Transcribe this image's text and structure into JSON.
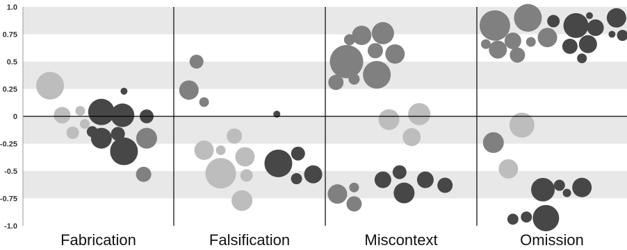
{
  "chart_data": {
    "type": "scatter",
    "subtype": "bubble",
    "title": "",
    "xlabel": "",
    "ylabel": "",
    "ylim": [
      -1.0,
      1.0
    ],
    "yticks": [
      1.0,
      0.75,
      0.5,
      0.25,
      0,
      -0.25,
      -0.5,
      -0.75,
      -1.0
    ],
    "ytick_labels": [
      "1.0",
      "0.75",
      "0.5",
      "0.25",
      "0",
      "-0.25",
      "-0.5",
      "-0.75",
      "-1.0"
    ],
    "grid": "alternating horizontal bands",
    "legend": "none",
    "colors": {
      "light": "#bdbdbd",
      "mid": "#808080",
      "dark": "#474747",
      "band": "#e8e8e8",
      "axis": "#000000"
    },
    "panels": [
      {
        "name": "Fabrication",
        "points": [
          {
            "x": 0.18,
            "y": 0.28,
            "r": 20,
            "shade": "light"
          },
          {
            "x": 0.26,
            "y": 0.01,
            "r": 12,
            "shade": "light"
          },
          {
            "x": 0.33,
            "y": -0.15,
            "r": 9,
            "shade": "light"
          },
          {
            "x": 0.38,
            "y": 0.05,
            "r": 7,
            "shade": "light"
          },
          {
            "x": 0.41,
            "y": -0.07,
            "r": 7,
            "shade": "light"
          },
          {
            "x": 0.46,
            "y": -0.14,
            "r": 8,
            "shade": "dark"
          },
          {
            "x": 0.52,
            "y": 0.04,
            "r": 19,
            "shade": "dark"
          },
          {
            "x": 0.52,
            "y": -0.2,
            "r": 15,
            "shade": "dark"
          },
          {
            "x": 0.63,
            "y": -0.16,
            "r": 10,
            "shade": "dark"
          },
          {
            "x": 0.67,
            "y": 0.23,
            "r": 5,
            "shade": "dark"
          },
          {
            "x": 0.66,
            "y": 0.01,
            "r": 17,
            "shade": "dark"
          },
          {
            "x": 0.67,
            "y": -0.32,
            "r": 20,
            "shade": "dark"
          },
          {
            "x": 0.82,
            "y": 0.0,
            "r": 10,
            "shade": "dark"
          },
          {
            "x": 0.82,
            "y": -0.2,
            "r": 15,
            "shade": "mid"
          },
          {
            "x": 0.8,
            "y": -0.53,
            "r": 11,
            "shade": "mid"
          }
        ]
      },
      {
        "name": "Falsification",
        "points": [
          {
            "x": 0.15,
            "y": 0.5,
            "r": 10,
            "shade": "mid"
          },
          {
            "x": 0.1,
            "y": 0.24,
            "r": 14,
            "shade": "mid"
          },
          {
            "x": 0.2,
            "y": 0.13,
            "r": 7,
            "shade": "mid"
          },
          {
            "x": 0.2,
            "y": -0.31,
            "r": 14,
            "shade": "light"
          },
          {
            "x": 0.31,
            "y": -0.31,
            "r": 7,
            "shade": "light"
          },
          {
            "x": 0.31,
            "y": -0.52,
            "r": 22,
            "shade": "light"
          },
          {
            "x": 0.4,
            "y": -0.18,
            "r": 11,
            "shade": "light"
          },
          {
            "x": 0.47,
            "y": -0.37,
            "r": 14,
            "shade": "light"
          },
          {
            "x": 0.48,
            "y": -0.54,
            "r": 9,
            "shade": "light"
          },
          {
            "x": 0.45,
            "y": -0.77,
            "r": 15,
            "shade": "light"
          },
          {
            "x": 0.68,
            "y": 0.02,
            "r": 5,
            "shade": "dark"
          },
          {
            "x": 0.69,
            "y": -0.43,
            "r": 20,
            "shade": "dark"
          },
          {
            "x": 0.82,
            "y": -0.34,
            "r": 10,
            "shade": "dark"
          },
          {
            "x": 0.81,
            "y": -0.57,
            "r": 8,
            "shade": "dark"
          },
          {
            "x": 0.92,
            "y": -0.53,
            "r": 13,
            "shade": "dark"
          }
        ]
      },
      {
        "name": "Miscontext",
        "points": [
          {
            "x": 0.16,
            "y": 0.7,
            "r": 8,
            "shade": "mid"
          },
          {
            "x": 0.24,
            "y": 0.74,
            "r": 14,
            "shade": "mid"
          },
          {
            "x": 0.38,
            "y": 0.76,
            "r": 16,
            "shade": "mid"
          },
          {
            "x": 0.33,
            "y": 0.6,
            "r": 11,
            "shade": "mid"
          },
          {
            "x": 0.46,
            "y": 0.57,
            "r": 14,
            "shade": "mid"
          },
          {
            "x": 0.14,
            "y": 0.5,
            "r": 24,
            "shade": "mid"
          },
          {
            "x": 0.34,
            "y": 0.38,
            "r": 20,
            "shade": "mid"
          },
          {
            "x": 0.19,
            "y": 0.34,
            "r": 8,
            "shade": "mid"
          },
          {
            "x": 0.07,
            "y": 0.31,
            "r": 11,
            "shade": "mid"
          },
          {
            "x": 0.42,
            "y": -0.03,
            "r": 15,
            "shade": "light"
          },
          {
            "x": 0.62,
            "y": 0.02,
            "r": 16,
            "shade": "light"
          },
          {
            "x": 0.57,
            "y": -0.19,
            "r": 13,
            "shade": "light"
          },
          {
            "x": 0.08,
            "y": -0.71,
            "r": 14,
            "shade": "mid"
          },
          {
            "x": 0.19,
            "y": -0.65,
            "r": 7,
            "shade": "mid"
          },
          {
            "x": 0.19,
            "y": -0.8,
            "r": 11,
            "shade": "mid"
          },
          {
            "x": 0.38,
            "y": -0.58,
            "r": 12,
            "shade": "dark"
          },
          {
            "x": 0.49,
            "y": -0.51,
            "r": 10,
            "shade": "dark"
          },
          {
            "x": 0.52,
            "y": -0.7,
            "r": 15,
            "shade": "dark"
          },
          {
            "x": 0.66,
            "y": -0.58,
            "r": 12,
            "shade": "dark"
          },
          {
            "x": 0.79,
            "y": -0.63,
            "r": 11,
            "shade": "dark"
          }
        ]
      },
      {
        "name": "Omission",
        "points": [
          {
            "x": 0.12,
            "y": 0.83,
            "r": 22,
            "shade": "mid"
          },
          {
            "x": 0.34,
            "y": 0.9,
            "r": 20,
            "shade": "mid"
          },
          {
            "x": 0.06,
            "y": 0.66,
            "r": 7,
            "shade": "mid"
          },
          {
            "x": 0.14,
            "y": 0.61,
            "r": 13,
            "shade": "mid"
          },
          {
            "x": 0.24,
            "y": 0.69,
            "r": 12,
            "shade": "mid"
          },
          {
            "x": 0.27,
            "y": 0.56,
            "r": 11,
            "shade": "mid"
          },
          {
            "x": 0.36,
            "y": 0.68,
            "r": 7,
            "shade": "mid"
          },
          {
            "x": 0.47,
            "y": 0.72,
            "r": 14,
            "shade": "mid"
          },
          {
            "x": 0.51,
            "y": 0.87,
            "r": 9,
            "shade": "dark"
          },
          {
            "x": 0.66,
            "y": 0.83,
            "r": 18,
            "shade": "dark"
          },
          {
            "x": 0.75,
            "y": 0.92,
            "r": 5,
            "shade": "dark"
          },
          {
            "x": 0.79,
            "y": 0.81,
            "r": 12,
            "shade": "dark"
          },
          {
            "x": 0.62,
            "y": 0.64,
            "r": 11,
            "shade": "dark"
          },
          {
            "x": 0.74,
            "y": 0.66,
            "r": 13,
            "shade": "dark"
          },
          {
            "x": 0.7,
            "y": 0.53,
            "r": 7,
            "shade": "dark"
          },
          {
            "x": 0.93,
            "y": 0.9,
            "r": 14,
            "shade": "dark"
          },
          {
            "x": 0.9,
            "y": 0.75,
            "r": 5,
            "shade": "dark"
          },
          {
            "x": 0.97,
            "y": 0.74,
            "r": 8,
            "shade": "dark"
          },
          {
            "x": 0.3,
            "y": -0.08,
            "r": 18,
            "shade": "light"
          },
          {
            "x": 0.11,
            "y": -0.24,
            "r": 15,
            "shade": "mid"
          },
          {
            "x": 0.21,
            "y": -0.48,
            "r": 14,
            "shade": "light"
          },
          {
            "x": 0.44,
            "y": -0.67,
            "r": 17,
            "shade": "dark"
          },
          {
            "x": 0.55,
            "y": -0.63,
            "r": 8,
            "shade": "dark"
          },
          {
            "x": 0.6,
            "y": -0.7,
            "r": 6,
            "shade": "dark"
          },
          {
            "x": 0.7,
            "y": -0.65,
            "r": 14,
            "shade": "dark"
          },
          {
            "x": 0.24,
            "y": -0.94,
            "r": 8,
            "shade": "dark"
          },
          {
            "x": 0.33,
            "y": -0.92,
            "r": 8,
            "shade": "dark"
          },
          {
            "x": 0.46,
            "y": -0.93,
            "r": 19,
            "shade": "dark"
          }
        ]
      }
    ]
  }
}
